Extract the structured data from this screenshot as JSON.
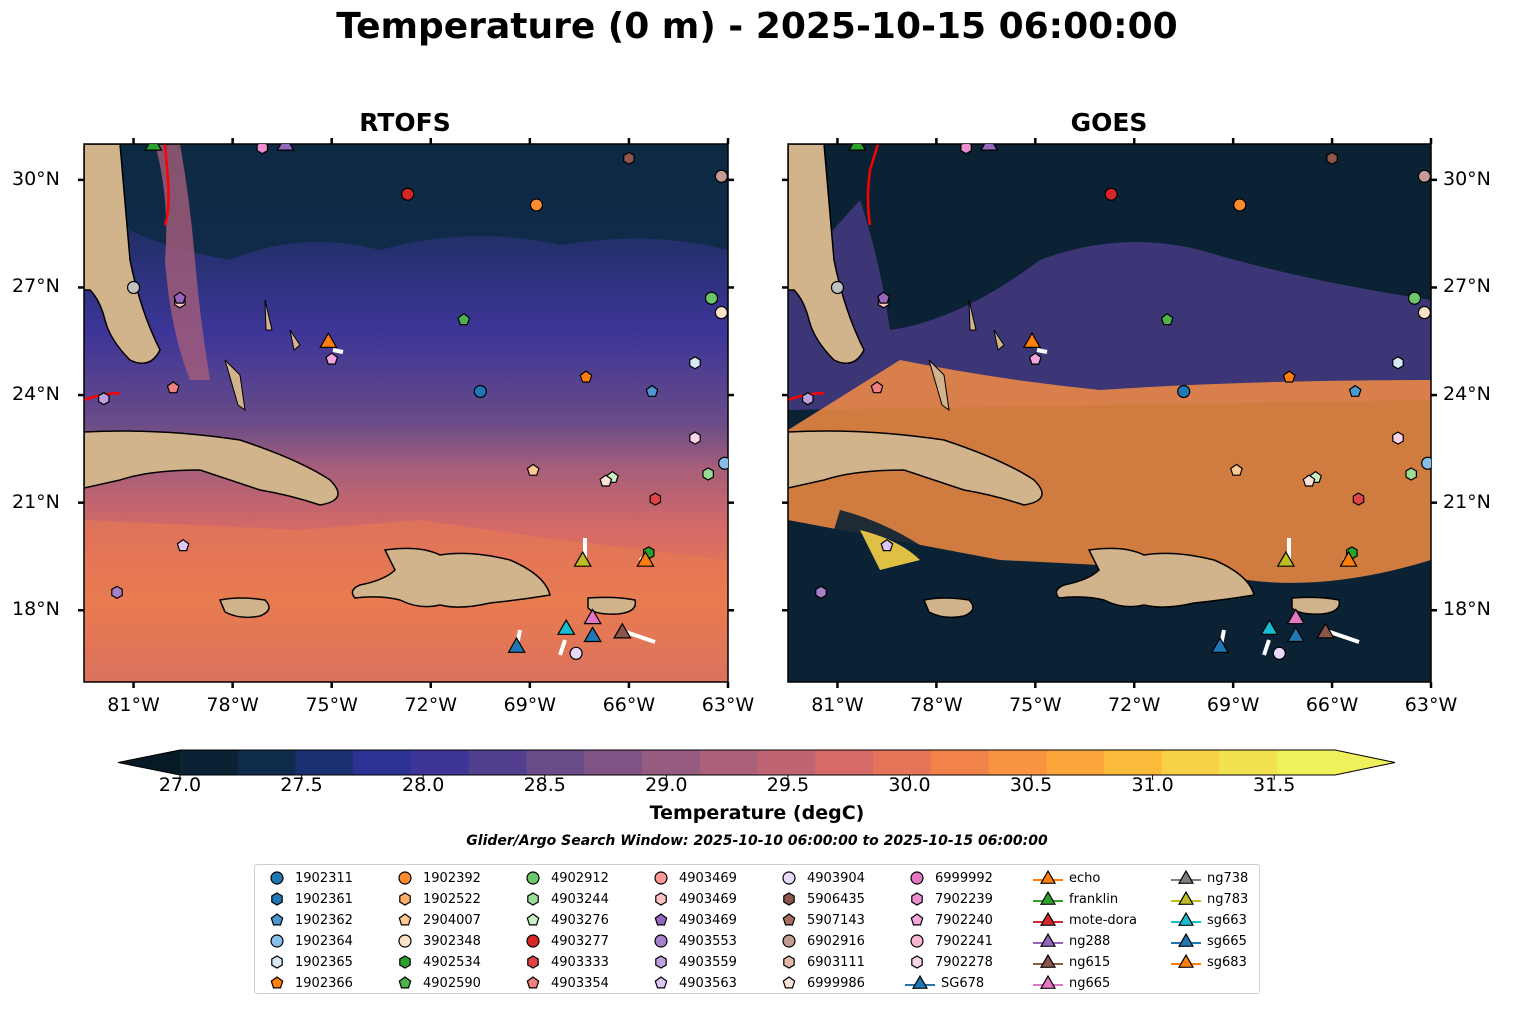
{
  "title": "Temperature (0 m) - 2025-10-15 06:00:00",
  "panels": [
    {
      "title": "RTOFS"
    },
    {
      "title": "GOES"
    }
  ],
  "map": {
    "lon_ticks": [
      "81°W",
      "78°W",
      "75°W",
      "72°W",
      "69°W",
      "66°W",
      "63°W"
    ],
    "lat_ticks": [
      "30°N",
      "27°N",
      "24°N",
      "21°N",
      "18°N"
    ],
    "lon_range": [
      -82.5,
      -63.0
    ],
    "lat_range": [
      16.0,
      31.0
    ]
  },
  "colorbar": {
    "label": "Temperature (degC)",
    "ticks": [
      "27.0",
      "27.5",
      "28.0",
      "28.5",
      "29.0",
      "29.5",
      "30.0",
      "30.5",
      "31.0",
      "31.5"
    ],
    "range": [
      27.0,
      31.75
    ],
    "colors": [
      "#0a2233",
      "#0e2b4c",
      "#1c3172",
      "#2b3294",
      "#3d3598",
      "#52408e",
      "#6a4c88",
      "#7f5485",
      "#955c80",
      "#aa607a",
      "#c06372",
      "#d56a66",
      "#e57458",
      "#f1824a",
      "#f8933f",
      "#fba53a",
      "#fbbb3a",
      "#f7d146",
      "#f3e24f",
      "#eef05c"
    ]
  },
  "search_window": "Glider/Argo Search Window: 2025-10-10 06:00:00 to 2025-10-15 06:00:00",
  "legend": {
    "columns": [
      [
        {
          "label": "1902311",
          "color": "#1f77b4",
          "shape": "circle"
        },
        {
          "label": "1902361",
          "color": "#1f77b4",
          "shape": "hexagon"
        },
        {
          "label": "1902362",
          "color": "#4a98cf",
          "shape": "pentagon"
        },
        {
          "label": "1902364",
          "color": "#86bfe8",
          "shape": "circle"
        },
        {
          "label": "1902365",
          "color": "#d5e9f6",
          "shape": "hexagon"
        },
        {
          "label": "1902366",
          "color": "#ff7f0e",
          "shape": "pentagon"
        }
      ],
      [
        {
          "label": "1902392",
          "color": "#ff8c2e",
          "shape": "circle"
        },
        {
          "label": "1902522",
          "color": "#ffad6a",
          "shape": "hexagon"
        },
        {
          "label": "2904007",
          "color": "#ffc895",
          "shape": "pentagon"
        },
        {
          "label": "3902348",
          "color": "#ffe3c6",
          "shape": "circle"
        },
        {
          "label": "4902534",
          "color": "#2ca02c",
          "shape": "hexagon"
        },
        {
          "label": "4902590",
          "color": "#4cb34c",
          "shape": "pentagon"
        }
      ],
      [
        {
          "label": "4902912",
          "color": "#6cc66c",
          "shape": "circle"
        },
        {
          "label": "4903244",
          "color": "#9adb96",
          "shape": "hexagon"
        },
        {
          "label": "4903276",
          "color": "#c8f0c4",
          "shape": "pentagon"
        },
        {
          "label": "4903277",
          "color": "#d62728",
          "shape": "circle"
        },
        {
          "label": "4903333",
          "color": "#e04444",
          "shape": "hexagon"
        },
        {
          "label": "4903354",
          "color": "#f08080",
          "shape": "pentagon"
        }
      ],
      [
        {
          "label": "4903469",
          "color": "#ff9896",
          "shape": "circle"
        },
        {
          "label": "4903469",
          "color": "#ffc4c2",
          "shape": "hexagon"
        },
        {
          "label": "4903469",
          "color": "#9467bd",
          "shape": "pentagon"
        },
        {
          "label": "4903553",
          "color": "#a782cb",
          "shape": "circle"
        },
        {
          "label": "4903559",
          "color": "#bf9fe0",
          "shape": "hexagon"
        },
        {
          "label": "4903563",
          "color": "#dcc6f5",
          "shape": "pentagon"
        }
      ],
      [
        {
          "label": "4903904",
          "color": "#e8d8fb",
          "shape": "circle"
        },
        {
          "label": "5906435",
          "color": "#8c564b",
          "shape": "hexagon"
        },
        {
          "label": "5907143",
          "color": "#a66d60",
          "shape": "pentagon"
        },
        {
          "label": "6902916",
          "color": "#c49c94",
          "shape": "circle"
        },
        {
          "label": "6903111",
          "color": "#e3b8ab",
          "shape": "hexagon"
        },
        {
          "label": "6999986",
          "color": "#fbe3da",
          "shape": "pentagon"
        }
      ],
      [
        {
          "label": "6999992",
          "color": "#e377c2",
          "shape": "circle"
        },
        {
          "label": "7902239",
          "color": "#ec8fd0",
          "shape": "hexagon"
        },
        {
          "label": "7902240",
          "color": "#f3a7dc",
          "shape": "pentagon"
        },
        {
          "label": "7902241",
          "color": "#f7b6d2",
          "shape": "circle"
        },
        {
          "label": "7902278",
          "color": "#fbd3e8",
          "shape": "hexagon"
        },
        {
          "label": "SG678",
          "color": "#1f77b4",
          "shape": "triangle"
        }
      ],
      [
        {
          "label": "echo",
          "color": "#ff7f0e",
          "shape": "triangle"
        },
        {
          "label": "franklin",
          "color": "#2ca02c",
          "shape": "triangle"
        },
        {
          "label": "mote-dora",
          "color": "#d62728",
          "shape": "triangle"
        },
        {
          "label": "ng288",
          "color": "#9467bd",
          "shape": "triangle"
        },
        {
          "label": "ng615",
          "color": "#8c564b",
          "shape": "triangle"
        },
        {
          "label": "ng665",
          "color": "#e377c2",
          "shape": "triangle"
        }
      ],
      [
        {
          "label": "ng738",
          "color": "#7f7f7f",
          "shape": "triangle"
        },
        {
          "label": "ng783",
          "color": "#bcbd22",
          "shape": "triangle"
        },
        {
          "label": "sg663",
          "color": "#17becf",
          "shape": "triangle"
        },
        {
          "label": "sg665",
          "color": "#1f77b4",
          "shape": "triangle"
        },
        {
          "label": "sg683",
          "color": "#ff7f0e",
          "shape": "triangle"
        }
      ]
    ]
  },
  "markers": [
    {
      "lon": -81.9,
      "lat": 23.9,
      "color": "#bf9fe0",
      "shape": "hexagon"
    },
    {
      "lon": -79.8,
      "lat": 24.2,
      "color": "#f08080",
      "shape": "pentagon"
    },
    {
      "lon": -79.6,
      "lat": 26.6,
      "color": "#ffc4c2",
      "shape": "hexagon"
    },
    {
      "lon": -79.6,
      "lat": 26.7,
      "color": "#9467bd",
      "shape": "pentagon"
    },
    {
      "lon": -75.0,
      "lat": 25.0,
      "color": "#f3a7dc",
      "shape": "pentagon"
    },
    {
      "lon": -71.0,
      "lat": 26.1,
      "color": "#4cb34c",
      "shape": "pentagon"
    },
    {
      "lon": -72.7,
      "lat": 29.6,
      "color": "#d62728",
      "shape": "circle"
    },
    {
      "lon": -68.8,
      "lat": 29.3,
      "color": "#ff8c2e",
      "shape": "circle"
    },
    {
      "lon": -66.0,
      "lat": 30.6,
      "color": "#8c564b",
      "shape": "hexagon"
    },
    {
      "lon": -63.2,
      "lat": 30.1,
      "color": "#c49c94",
      "shape": "circle"
    },
    {
      "lon": -77.1,
      "lat": 30.9,
      "color": "#ec8fd0",
      "shape": "hexagon"
    },
    {
      "lon": -63.5,
      "lat": 26.7,
      "color": "#6cc66c",
      "shape": "circle"
    },
    {
      "lon": -63.2,
      "lat": 26.3,
      "color": "#ffe3c6",
      "shape": "circle"
    },
    {
      "lon": -64.0,
      "lat": 24.9,
      "color": "#d5e9f6",
      "shape": "hexagon"
    },
    {
      "lon": -67.3,
      "lat": 24.5,
      "color": "#ff7f0e",
      "shape": "pentagon"
    },
    {
      "lon": -70.5,
      "lat": 24.1,
      "color": "#1f77b4",
      "shape": "circle"
    },
    {
      "lon": -65.3,
      "lat": 24.1,
      "color": "#4a98cf",
      "shape": "pentagon"
    },
    {
      "lon": -64.0,
      "lat": 22.8,
      "color": "#fbd3e8",
      "shape": "hexagon"
    },
    {
      "lon": -63.1,
      "lat": 22.1,
      "color": "#86bfe8",
      "shape": "circle"
    },
    {
      "lon": -68.9,
      "lat": 21.9,
      "color": "#ffc895",
      "shape": "pentagon"
    },
    {
      "lon": -66.5,
      "lat": 21.7,
      "color": "#c8f0c4",
      "shape": "pentagon"
    },
    {
      "lon": -66.7,
      "lat": 21.6,
      "color": "#fbe3da",
      "shape": "pentagon"
    },
    {
      "lon": -63.6,
      "lat": 21.8,
      "color": "#9adb96",
      "shape": "hexagon"
    },
    {
      "lon": -65.2,
      "lat": 21.1,
      "color": "#e04444",
      "shape": "hexagon"
    },
    {
      "lon": -79.5,
      "lat": 19.8,
      "color": "#dcc6f5",
      "shape": "pentagon"
    },
    {
      "lon": -81.5,
      "lat": 18.5,
      "color": "#a782cb",
      "shape": "hexagon"
    },
    {
      "lon": -65.4,
      "lat": 19.6,
      "color": "#2ca02c",
      "shape": "hexagon"
    },
    {
      "lon": -67.6,
      "lat": 16.8,
      "color": "#e8d8fb",
      "shape": "circle"
    },
    {
      "lon": -81.0,
      "lat": 27.0,
      "color": "#c0c0c0",
      "shape": "circle"
    },
    {
      "lon": -67.4,
      "lat": 19.4,
      "color": "#bcbd22",
      "shape": "triangle"
    },
    {
      "lon": -65.5,
      "lat": 19.4,
      "color": "#ff7f0e",
      "shape": "triangle"
    },
    {
      "lon": -67.9,
      "lat": 17.5,
      "color": "#17becf",
      "shape": "triangle"
    },
    {
      "lon": -67.1,
      "lat": 17.8,
      "color": "#e377c2",
      "shape": "triangle"
    },
    {
      "lon": -67.1,
      "lat": 17.3,
      "color": "#1f77b4",
      "shape": "triangle"
    },
    {
      "lon": -69.4,
      "lat": 17.0,
      "color": "#1f77b4",
      "shape": "triangle"
    },
    {
      "lon": -66.2,
      "lat": 17.4,
      "color": "#8c564b",
      "shape": "triangle"
    },
    {
      "lon": -75.1,
      "lat": 25.5,
      "color": "#ff7f0e",
      "shape": "triangle"
    },
    {
      "lon": -76.4,
      "lat": 31.0,
      "color": "#9467bd",
      "shape": "triangle"
    },
    {
      "lon": -80.4,
      "lat": 31.0,
      "color": "#2ca02c",
      "shape": "triangle"
    }
  ]
}
